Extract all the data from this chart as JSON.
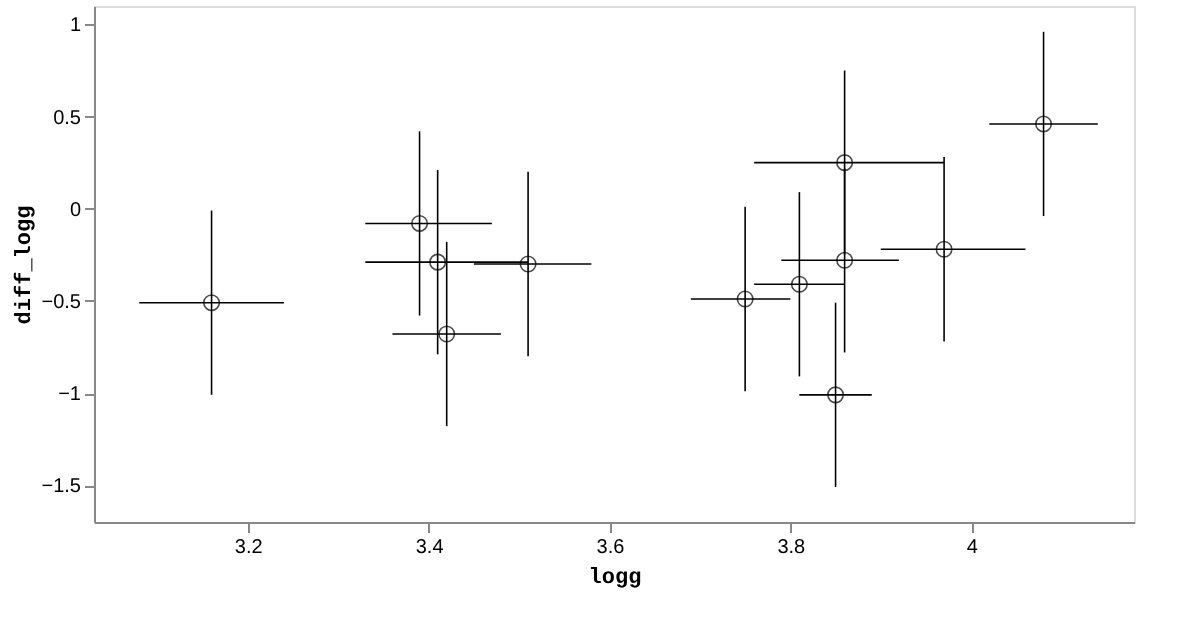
{
  "chart_data": {
    "type": "scatter",
    "xlabel": "logg",
    "ylabel": "diff_logg",
    "x": [
      3.16,
      3.39,
      3.41,
      3.42,
      3.51,
      3.75,
      3.81,
      3.86,
      3.86,
      3.85,
      3.97,
      4.08
    ],
    "series": [
      {
        "color": "#000000",
        "values": [
          -0.51,
          -0.08,
          -0.29,
          -0.68,
          -0.3,
          -0.49,
          -0.41,
          0.25,
          -0.28,
          -1.01,
          -0.22,
          0.46
        ],
        "errors": [
          0.5,
          0.5,
          0.5,
          0.5,
          0.5,
          0.5,
          0.5,
          0.5,
          0.5,
          0.5,
          0.5,
          0.5
        ],
        "xerrors": [
          0.08,
          [
            3.33,
            3.47
          ],
          [
            3.33,
            3.51
          ],
          [
            3.36,
            3.48
          ],
          [
            3.45,
            3.58
          ],
          [
            3.69,
            3.8
          ],
          [
            3.76,
            3.86
          ],
          [
            3.76,
            3.97
          ],
          [
            3.79,
            3.92
          ],
          [
            3.81,
            3.89
          ],
          [
            3.9,
            4.06
          ],
          [
            4.02,
            4.14
          ]
        ]
      }
    ],
    "marker": "circle",
    "xlim": [
      3.03,
      4.18
    ],
    "ylim": [
      -1.7,
      1.1
    ],
    "xticks": [
      {
        "value": 3.2,
        "label": "3.2"
      },
      {
        "value": 3.4,
        "label": "3.4"
      },
      {
        "value": 3.6,
        "label": "3.6"
      },
      {
        "value": 3.8,
        "label": "3.8"
      },
      {
        "value": 4.0,
        "label": "4"
      }
    ],
    "yticks": [
      {
        "value": -1.5,
        "label": "−1.5"
      },
      {
        "value": -1,
        "label": "−1"
      },
      {
        "value": -0.5,
        "label": "−0.5"
      },
      0,
      0.5,
      1
    ],
    "grid": false
  }
}
